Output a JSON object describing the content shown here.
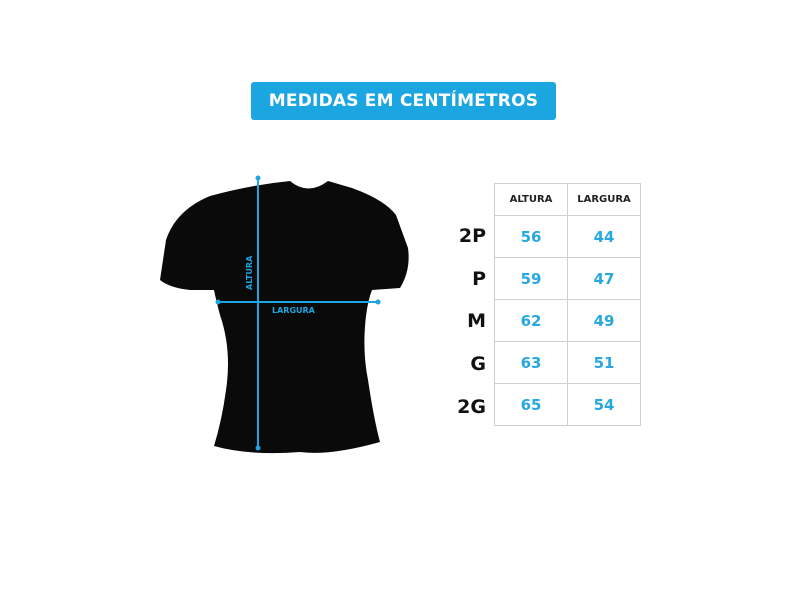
{
  "title": "MEDIDAS EM CENTÍMETROS",
  "diagram": {
    "height_label": "ALTURA",
    "width_label": "LARGURA",
    "shirt_color": "#0a0a0a",
    "line_color": "#1ba5e1"
  },
  "table": {
    "headers": [
      "ALTURA",
      "LARGURA"
    ],
    "rows": [
      {
        "size": "2P",
        "altura": "56",
        "largura": "44"
      },
      {
        "size": "P",
        "altura": "59",
        "largura": "47"
      },
      {
        "size": "M",
        "altura": "62",
        "largura": "49"
      },
      {
        "size": "G",
        "altura": "63",
        "largura": "51"
      },
      {
        "size": "2G",
        "altura": "65",
        "largura": "54"
      }
    ]
  },
  "accent_color": "#1ba5e1"
}
